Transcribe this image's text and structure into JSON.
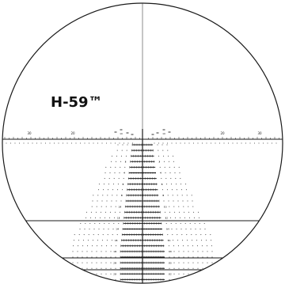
{
  "reticle": {
    "name": "H-59™",
    "colors": {
      "background": "#ffffff",
      "line": "#1a1a1a"
    },
    "top_scale_labels": [
      "30",
      "20",
      "10",
      "10",
      "20",
      "30"
    ],
    "row_labels": [
      "2",
      "4",
      "6",
      "8",
      "10",
      "12",
      "14",
      "16",
      "18",
      "20",
      "22"
    ]
  }
}
